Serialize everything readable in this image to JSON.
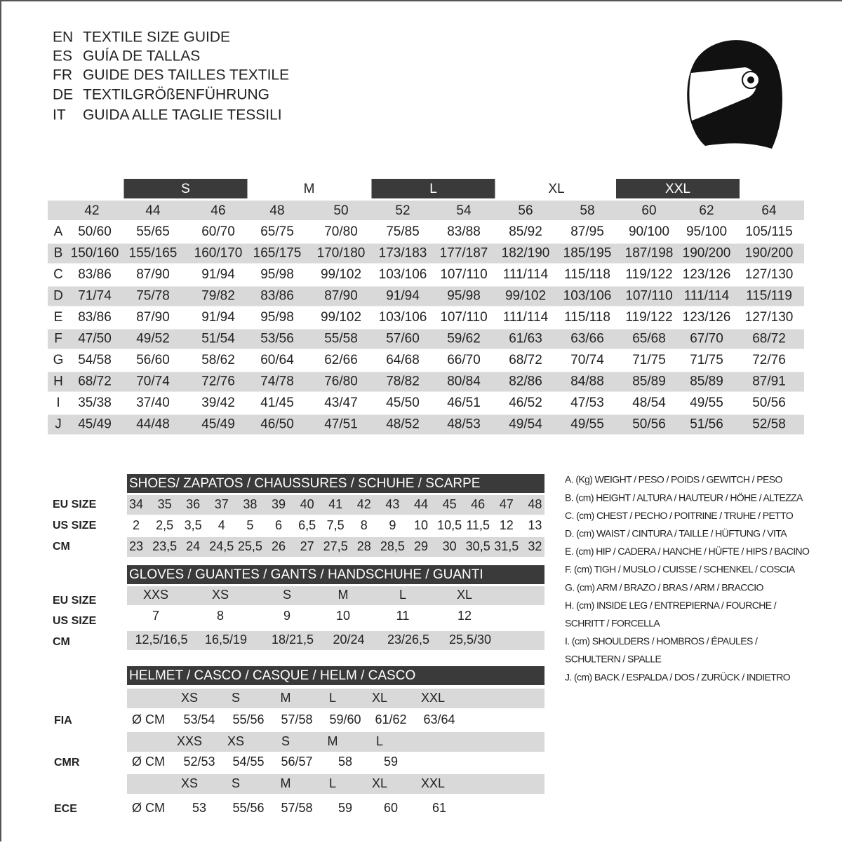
{
  "header": {
    "lines": [
      {
        "code": "EN",
        "text": "TEXTILE SIZE GUIDE"
      },
      {
        "code": "ES",
        "text": "GUÍA DE TALLAS"
      },
      {
        "code": "FR",
        "text": "GUIDE DES TAILLES TEXTILE"
      },
      {
        "code": "DE",
        "text": "TEXTILGRÖßENFÜHRUNG"
      },
      {
        "code": "IT",
        "text": "GUIDA ALLE TAGLIE TESSILI"
      }
    ]
  },
  "textile": {
    "size_groups": [
      "S",
      "M",
      "L",
      "XL",
      "XXL"
    ],
    "sizes": [
      "42",
      "44",
      "46",
      "48",
      "50",
      "52",
      "54",
      "56",
      "58",
      "60",
      "62",
      "64"
    ],
    "rows": [
      {
        "label": "A",
        "values": [
          "50/60",
          "55/65",
          "60/70",
          "65/75",
          "70/80",
          "75/85",
          "83/88",
          "85/92",
          "87/95",
          "90/100",
          "95/100",
          "105/115"
        ]
      },
      {
        "label": "B",
        "values": [
          "150/160",
          "155/165",
          "160/170",
          "165/175",
          "170/180",
          "173/183",
          "177/187",
          "182/190",
          "185/195",
          "187/198",
          "190/200",
          "190/200"
        ]
      },
      {
        "label": "C",
        "values": [
          "83/86",
          "87/90",
          "91/94",
          "95/98",
          "99/102",
          "103/106",
          "107/110",
          "111/114",
          "115/118",
          "119/122",
          "123/126",
          "127/130"
        ]
      },
      {
        "label": "D",
        "values": [
          "71/74",
          "75/78",
          "79/82",
          "83/86",
          "87/90",
          "91/94",
          "95/98",
          "99/102",
          "103/106",
          "107/110",
          "111/114",
          "115/119"
        ]
      },
      {
        "label": "E",
        "values": [
          "83/86",
          "87/90",
          "91/94",
          "95/98",
          "99/102",
          "103/106",
          "107/110",
          "111/114",
          "115/118",
          "119/122",
          "123/126",
          "127/130"
        ]
      },
      {
        "label": "F",
        "values": [
          "47/50",
          "49/52",
          "51/54",
          "53/56",
          "55/58",
          "57/60",
          "59/62",
          "61/63",
          "63/66",
          "65/68",
          "67/70",
          "68/72"
        ]
      },
      {
        "label": "G",
        "values": [
          "54/58",
          "56/60",
          "58/62",
          "60/64",
          "62/66",
          "64/68",
          "66/70",
          "68/72",
          "70/74",
          "71/75",
          "71/75",
          "72/76"
        ]
      },
      {
        "label": "H",
        "values": [
          "68/72",
          "70/74",
          "72/76",
          "74/78",
          "76/80",
          "78/82",
          "80/84",
          "82/86",
          "84/88",
          "85/89",
          "85/89",
          "87/91"
        ]
      },
      {
        "label": "I",
        "values": [
          "35/38",
          "37/40",
          "39/42",
          "41/45",
          "43/47",
          "45/50",
          "46/51",
          "46/52",
          "47/53",
          "48/54",
          "49/55",
          "50/56"
        ]
      },
      {
        "label": "J",
        "values": [
          "45/49",
          "44/48",
          "45/49",
          "46/50",
          "47/51",
          "48/52",
          "48/53",
          "49/54",
          "49/55",
          "50/56",
          "51/56",
          "52/58"
        ]
      }
    ]
  },
  "shoes": {
    "title": "SHOES/ ZAPATOS / CHAUSSURES / SCHUHE / SCARPE",
    "rows": [
      {
        "label": "EU SIZE",
        "values": [
          "34",
          "35",
          "36",
          "37",
          "38",
          "39",
          "40",
          "41",
          "42",
          "43",
          "44",
          "45",
          "46",
          "47",
          "48"
        ]
      },
      {
        "label": "US SIZE",
        "values": [
          "2",
          "2,5",
          "3,5",
          "4",
          "5",
          "6",
          "6,5",
          "7,5",
          "8",
          "9",
          "10",
          "10,5",
          "11,5",
          "12",
          "13"
        ]
      },
      {
        "label": "CM",
        "values": [
          "23",
          "23,5",
          "24",
          "24,5",
          "25,5",
          "26",
          "27",
          "27,5",
          "28",
          "28,5",
          "29",
          "30",
          "30,5",
          "31,5",
          "32"
        ]
      }
    ]
  },
  "gloves": {
    "title": "GLOVES / GUANTES / GANTS / HANDSCHUHE / GUANTI",
    "rows": [
      {
        "label": "EU SIZE",
        "values": [
          "XXS",
          "XS",
          "S",
          "M",
          "L",
          "XL"
        ]
      },
      {
        "label": "US SIZE",
        "values": [
          "7",
          "8",
          "9",
          "10",
          "11",
          "12"
        ]
      },
      {
        "label": "CM",
        "values": [
          "12,5/16,5",
          "16,5/19",
          "18/21,5",
          "20/24",
          "23/26,5",
          "25,5/30"
        ]
      }
    ]
  },
  "helmet": {
    "title": "HELMET / CASCO / CASQUE / HELM / CASCO",
    "standards": [
      {
        "label": "FIA",
        "sizes": [
          "XS",
          "S",
          "M",
          "L",
          "XL",
          "XXL"
        ],
        "unit": "Ø CM",
        "values": [
          "53/54",
          "55/56",
          "57/58",
          "59/60",
          "61/62",
          "63/64"
        ]
      },
      {
        "label": "CMR",
        "sizes": [
          "XXS",
          "XS",
          "S",
          "M",
          "L"
        ],
        "unit": "Ø CM",
        "values": [
          "52/53",
          "54/55",
          "56/57",
          "58",
          "59"
        ]
      },
      {
        "label": "ECE",
        "sizes": [
          "XS",
          "S",
          "M",
          "L",
          "XL",
          "XXL"
        ],
        "unit": "Ø CM",
        "values": [
          "53",
          "55/56",
          "57/58",
          "59",
          "60",
          "61"
        ]
      }
    ]
  },
  "legend": [
    "A. (Kg) WEIGHT / PESO / POIDS / GEWITCH / PESO",
    "B. (cm) HEIGHT / ALTURA / HAUTEUR / HÖHE / ALTEZZA",
    "C. (cm) CHEST / PECHO / POITRINE / TRUHE / PETTO",
    "D. (cm) WAIST / CINTURA / TAILLE / HÜFTUNG / VITA",
    "E. (cm) HIP / CADERA / HANCHE / HÜFTE / HIPS /  BACINO",
    "F.  (cm) TIGH / MUSLO / CUISSE / SCHENKEL / COSCIA",
    "G. (cm) ARM  / BRAZO / BRAS / ARM / BRACCIO",
    "H. (cm) INSIDE LEG / ENTREPIERNA / FOURCHE /",
    "SCHRITT / FORCELLA",
    "I.  (cm) SHOULDERS / HOMBROS / ÉPAULES /",
    "SCHULTERN / SPALLE",
    "J. (cm) BACK / ESPALDA / DOS / ZURÜCK / INDIETRO"
  ]
}
